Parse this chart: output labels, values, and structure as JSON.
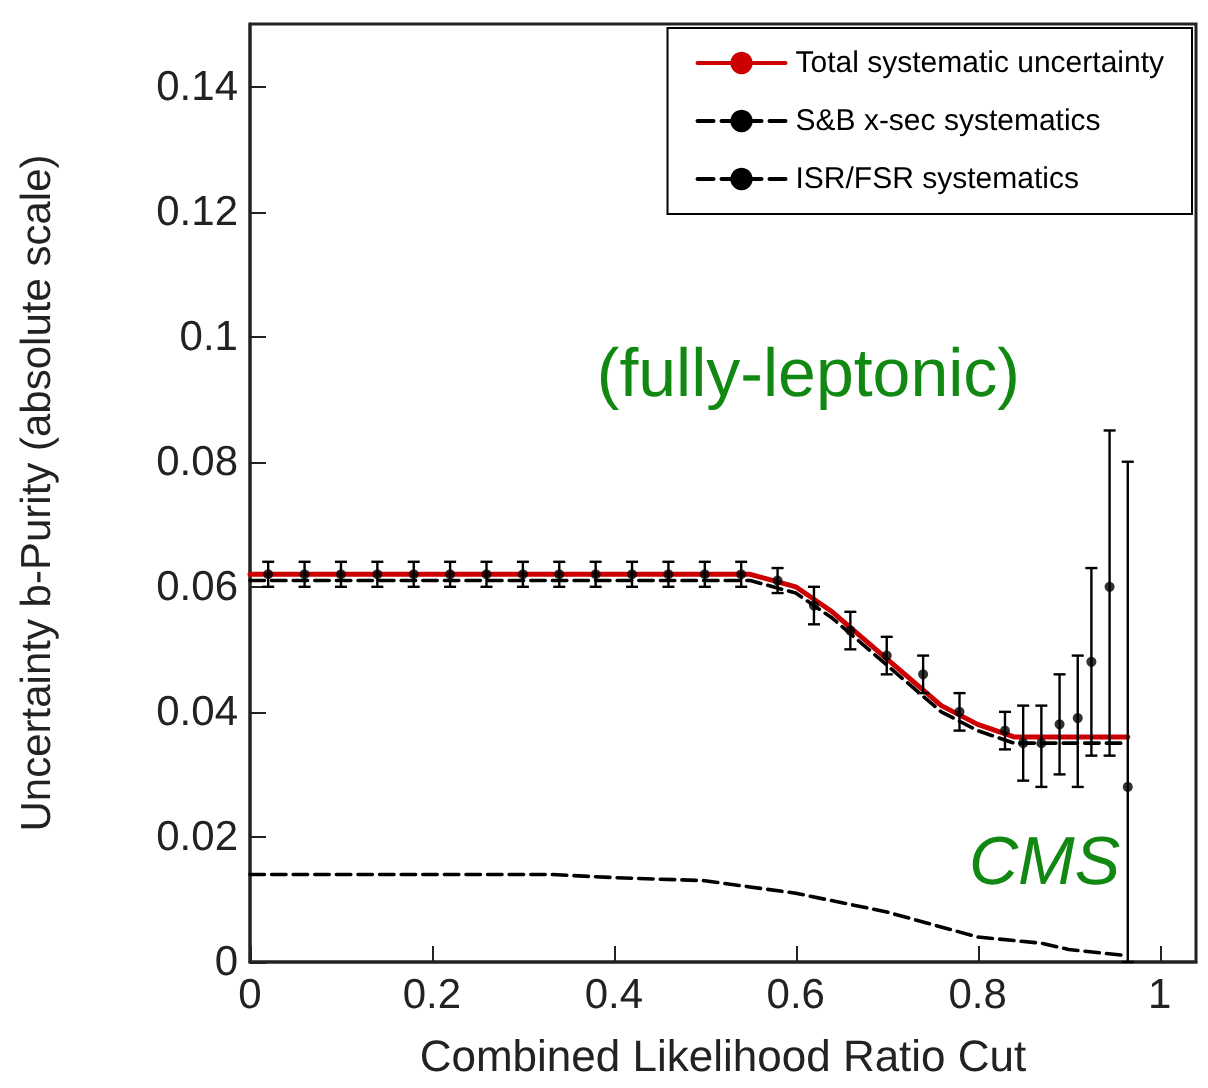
{
  "chart_data": {
    "type": "line",
    "xlabel": "Combined Likelihood Ratio Cut",
    "ylabel": "Uncertainty b-Purity (absolute scale)",
    "annotations": [
      "(fully-leptonic)",
      "CMS"
    ],
    "xlim": [
      0,
      1.04
    ],
    "xticks": [
      0,
      0.2,
      0.4,
      0.6,
      0.8,
      1
    ],
    "ylim": [
      0,
      0.15
    ],
    "yticks": [
      0,
      0.02,
      0.04,
      0.06,
      0.08,
      0.1,
      0.12,
      0.14
    ],
    "legend": "top right",
    "grid": false,
    "line_style": "solid",
    "marker": "none",
    "series": [
      {
        "name": "Total systematic uncertainty",
        "color": "#cc0000",
        "x": [
          0,
          0.1,
          0.2,
          0.3,
          0.4,
          0.5,
          0.55,
          0.6,
          0.64,
          0.68,
          0.72,
          0.76,
          0.8,
          0.84,
          0.88,
          0.92,
          0.965
        ],
        "values": [
          0.062,
          0.062,
          0.062,
          0.062,
          0.062,
          0.062,
          0.062,
          0.06,
          0.056,
          0.051,
          0.046,
          0.041,
          0.038,
          0.036,
          0.036,
          0.036,
          0.036
        ]
      },
      {
        "name": "S&B x-sec systematics",
        "line_style": "dashed",
        "color": "#000000",
        "x": [
          0,
          0.1,
          0.2,
          0.3,
          0.4,
          0.5,
          0.55,
          0.6,
          0.64,
          0.68,
          0.72,
          0.76,
          0.8,
          0.84,
          0.88,
          0.92,
          0.965
        ],
        "values": [
          0.061,
          0.061,
          0.061,
          0.061,
          0.061,
          0.061,
          0.061,
          0.059,
          0.055,
          0.05,
          0.045,
          0.04,
          0.037,
          0.035,
          0.035,
          0.035,
          0.035
        ]
      },
      {
        "name": "ISR/FSR systematics",
        "line_style": "dashed",
        "color": "#000000",
        "x": [
          0,
          0.1,
          0.2,
          0.33,
          0.4,
          0.5,
          0.6,
          0.7,
          0.8,
          0.87,
          0.9,
          0.965
        ],
        "values": [
          0.014,
          0.014,
          0.014,
          0.014,
          0.0135,
          0.013,
          0.011,
          0.008,
          0.004,
          0.003,
          0.002,
          0.001
        ]
      },
      {
        "type": "scatter",
        "marker": "circle",
        "color": "#000000",
        "x": [
          0.02,
          0.06,
          0.1,
          0.14,
          0.18,
          0.22,
          0.26,
          0.3,
          0.34,
          0.38,
          0.42,
          0.46,
          0.5,
          0.54,
          0.58,
          0.62,
          0.66,
          0.7,
          0.74,
          0.78,
          0.83,
          0.85,
          0.87,
          0.89,
          0.91,
          0.925,
          0.945,
          0.965
        ],
        "values": [
          0.062,
          0.062,
          0.062,
          0.062,
          0.062,
          0.062,
          0.062,
          0.062,
          0.062,
          0.062,
          0.062,
          0.062,
          0.062,
          0.062,
          0.061,
          0.057,
          0.053,
          0.049,
          0.046,
          0.04,
          0.037,
          0.035,
          0.035,
          0.038,
          0.039,
          0.048,
          0.06,
          0.028
        ],
        "errors": [
          0.002,
          0.002,
          0.002,
          0.002,
          0.002,
          0.002,
          0.002,
          0.002,
          0.002,
          0.002,
          0.002,
          0.002,
          0.002,
          0.002,
          0.002,
          0.003,
          0.003,
          0.003,
          0.003,
          0.003,
          0.003,
          [
            0.029,
            0.041
          ],
          [
            0.028,
            0.041
          ],
          [
            0.03,
            0.046
          ],
          [
            0.028,
            0.049
          ],
          [
            0.033,
            0.063
          ],
          [
            0.033,
            0.085
          ],
          [
            0,
            0.08
          ]
        ]
      }
    ]
  }
}
